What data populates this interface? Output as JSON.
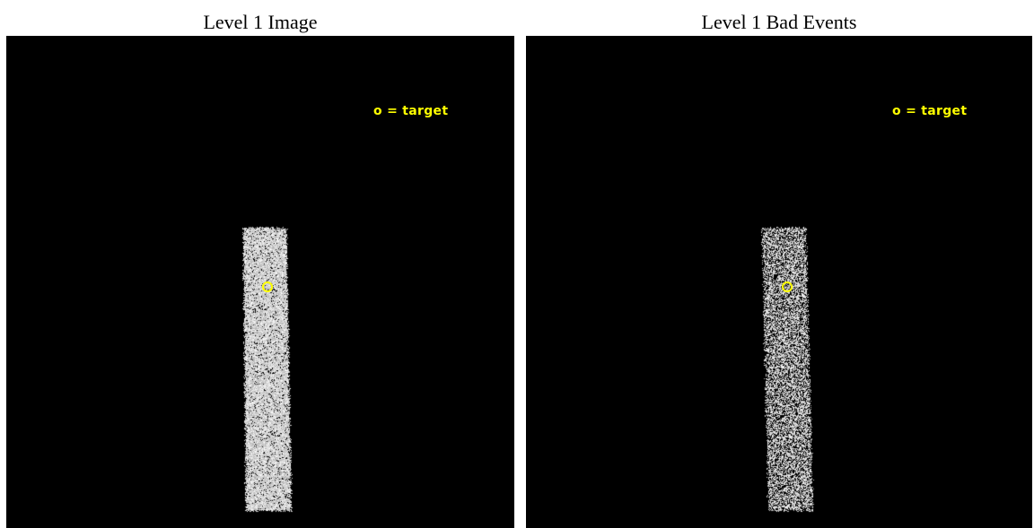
{
  "panels": [
    {
      "title": "Level 1 Image",
      "legend": "o = target",
      "background_color": "#000000",
      "band_color": "#e6e6e6",
      "marker_color": "#ffff00",
      "noise_level": 0.08
    },
    {
      "title": "Level 1 Bad Events",
      "legend": "o = target",
      "background_color": "#000000",
      "band_color": "#e6e6e6",
      "marker_color": "#ffff00",
      "noise_level": 0.38
    }
  ]
}
